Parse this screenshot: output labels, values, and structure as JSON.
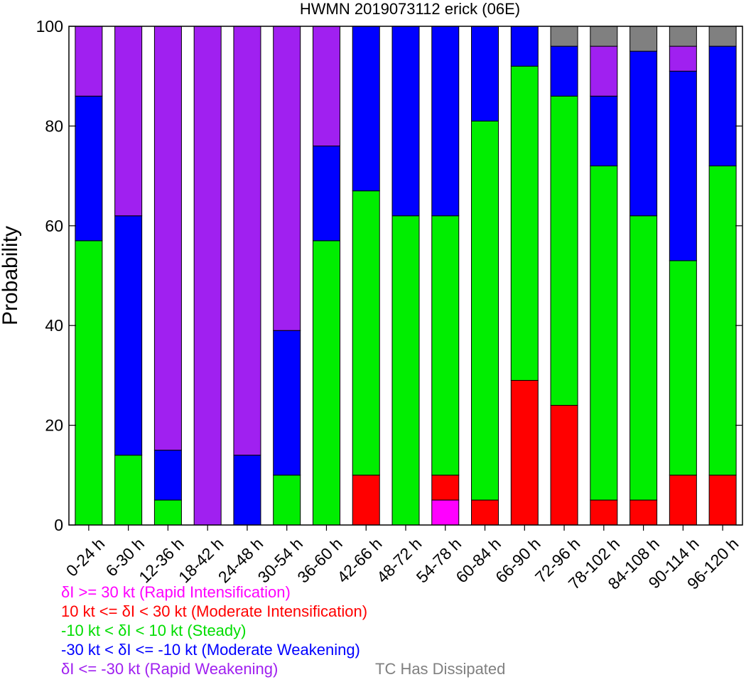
{
  "chart_data": {
    "type": "bar",
    "stacked": true,
    "title": "HWMN 2019073112 erick (06E)",
    "xlabel": "",
    "ylabel": "Probability",
    "ylim": [
      0,
      100
    ],
    "yticks": [
      0,
      20,
      40,
      60,
      80,
      100
    ],
    "categories": [
      "0-24 h",
      "6-30 h",
      "12-36 h",
      "18-42 h",
      "24-48 h",
      "30-54 h",
      "36-60 h",
      "42-66 h",
      "48-72 h",
      "54-78 h",
      "60-84 h",
      "66-90 h",
      "72-96 h",
      "78-102 h",
      "84-108 h",
      "90-114 h",
      "96-120 h"
    ],
    "series": [
      {
        "key": "ri",
        "color": "#ff00ff",
        "values": [
          0,
          0,
          0,
          0,
          0,
          0,
          0,
          0,
          0,
          5,
          0,
          0,
          0,
          0,
          0,
          0,
          0
        ]
      },
      {
        "key": "mi",
        "color": "#ff0000",
        "values": [
          0,
          0,
          0,
          0,
          0,
          0,
          0,
          10,
          0,
          5,
          5,
          29,
          24,
          5,
          5,
          10,
          10
        ]
      },
      {
        "key": "st",
        "color": "#00ee00",
        "values": [
          57,
          14,
          5,
          0,
          0,
          10,
          57,
          57,
          62,
          52,
          76,
          63,
          62,
          67,
          57,
          43,
          62
        ]
      },
      {
        "key": "mw",
        "color": "#0000ff",
        "values": [
          29,
          48,
          10,
          0,
          14,
          29,
          19,
          33,
          38,
          38,
          19,
          8,
          10,
          14,
          33,
          38,
          24
        ]
      },
      {
        "key": "rw",
        "color": "#a020f0",
        "values": [
          14,
          38,
          85,
          100,
          86,
          61,
          24,
          0,
          0,
          0,
          0,
          0,
          0,
          10,
          0,
          5,
          0
        ]
      },
      {
        "key": "dis",
        "color": "#808080",
        "values": [
          0,
          0,
          0,
          0,
          0,
          0,
          0,
          0,
          0,
          0,
          0,
          0,
          4,
          4,
          5,
          4,
          4
        ]
      }
    ],
    "legend": [
      {
        "text": "δI >= 30 kt (Rapid Intensification)",
        "color": "#ff00ff"
      },
      {
        "text": "10 kt <= δI < 30 kt (Moderate Intensification)",
        "color": "#ff0000"
      },
      {
        "text": "-10 kt < δI < 10 kt (Steady)",
        "color": "#00ee00"
      },
      {
        "text": "-30 kt < δI <= -10 kt (Moderate Weakening)",
        "color": "#0000ff"
      },
      {
        "text": "δI <= -30 kt (Rapid Weakening)",
        "color": "#a020f0"
      },
      {
        "text": "TC Has Dissipated",
        "color": "#808080"
      }
    ],
    "grid": false,
    "legend_position": "bottom-left"
  }
}
